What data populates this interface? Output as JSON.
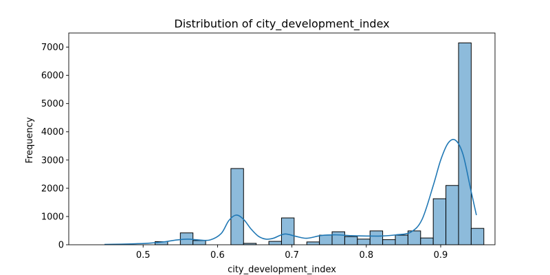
{
  "chart_data": {
    "type": "bar",
    "title": "Distribution of city_development_index",
    "xlabel": "city_development_index",
    "ylabel": "Frequency",
    "xlim": [
      0.4,
      0.973
    ],
    "ylim": [
      0,
      7500
    ],
    "x_ticks": [
      0.5,
      0.6,
      0.7,
      0.8,
      0.9
    ],
    "x_tick_labels": [
      "0.5",
      "0.6",
      "0.7",
      "0.8",
      "0.9"
    ],
    "y_ticks": [
      0,
      1000,
      2000,
      3000,
      4000,
      5000,
      6000,
      7000
    ],
    "y_tick_labels": [
      "0",
      "1000",
      "2000",
      "3000",
      "4000",
      "5000",
      "6000",
      "7000"
    ],
    "bin_edges": [
      0.448,
      0.465,
      0.482,
      0.499,
      0.516,
      0.533,
      0.55,
      0.567,
      0.584,
      0.601,
      0.618,
      0.635,
      0.652,
      0.669,
      0.686,
      0.703,
      0.72,
      0.737,
      0.754,
      0.771,
      0.788,
      0.805,
      0.822,
      0.839,
      0.856,
      0.873,
      0.89,
      0.907,
      0.924,
      0.941
    ],
    "values": [
      0,
      0,
      0,
      0,
      110,
      0,
      420,
      150,
      0,
      0,
      2700,
      50,
      0,
      120,
      950,
      0,
      100,
      340,
      460,
      290,
      200,
      490,
      180,
      340,
      490,
      240,
      1630,
      2100,
      7150,
      580
    ],
    "kde": {
      "x": [
        0.448,
        0.47,
        0.49,
        0.51,
        0.53,
        0.545,
        0.56,
        0.575,
        0.59,
        0.605,
        0.615,
        0.625,
        0.635,
        0.645,
        0.655,
        0.665,
        0.675,
        0.69,
        0.705,
        0.72,
        0.74,
        0.76,
        0.78,
        0.8,
        0.82,
        0.84,
        0.86,
        0.875,
        0.89,
        0.9,
        0.91,
        0.92,
        0.93,
        0.94,
        0.948
      ],
      "y": [
        10,
        20,
        35,
        60,
        110,
        170,
        200,
        170,
        170,
        400,
        850,
        1050,
        900,
        560,
        300,
        200,
        230,
        380,
        300,
        230,
        330,
        350,
        320,
        310,
        310,
        350,
        450,
        900,
        2100,
        3000,
        3600,
        3700,
        3200,
        2000,
        1050
      ]
    },
    "colors": {
      "bar_fill": "#8dbbdb",
      "bar_edge": "#000000",
      "kde_line": "#1f77b4"
    },
    "grid": false,
    "legend": "none"
  }
}
